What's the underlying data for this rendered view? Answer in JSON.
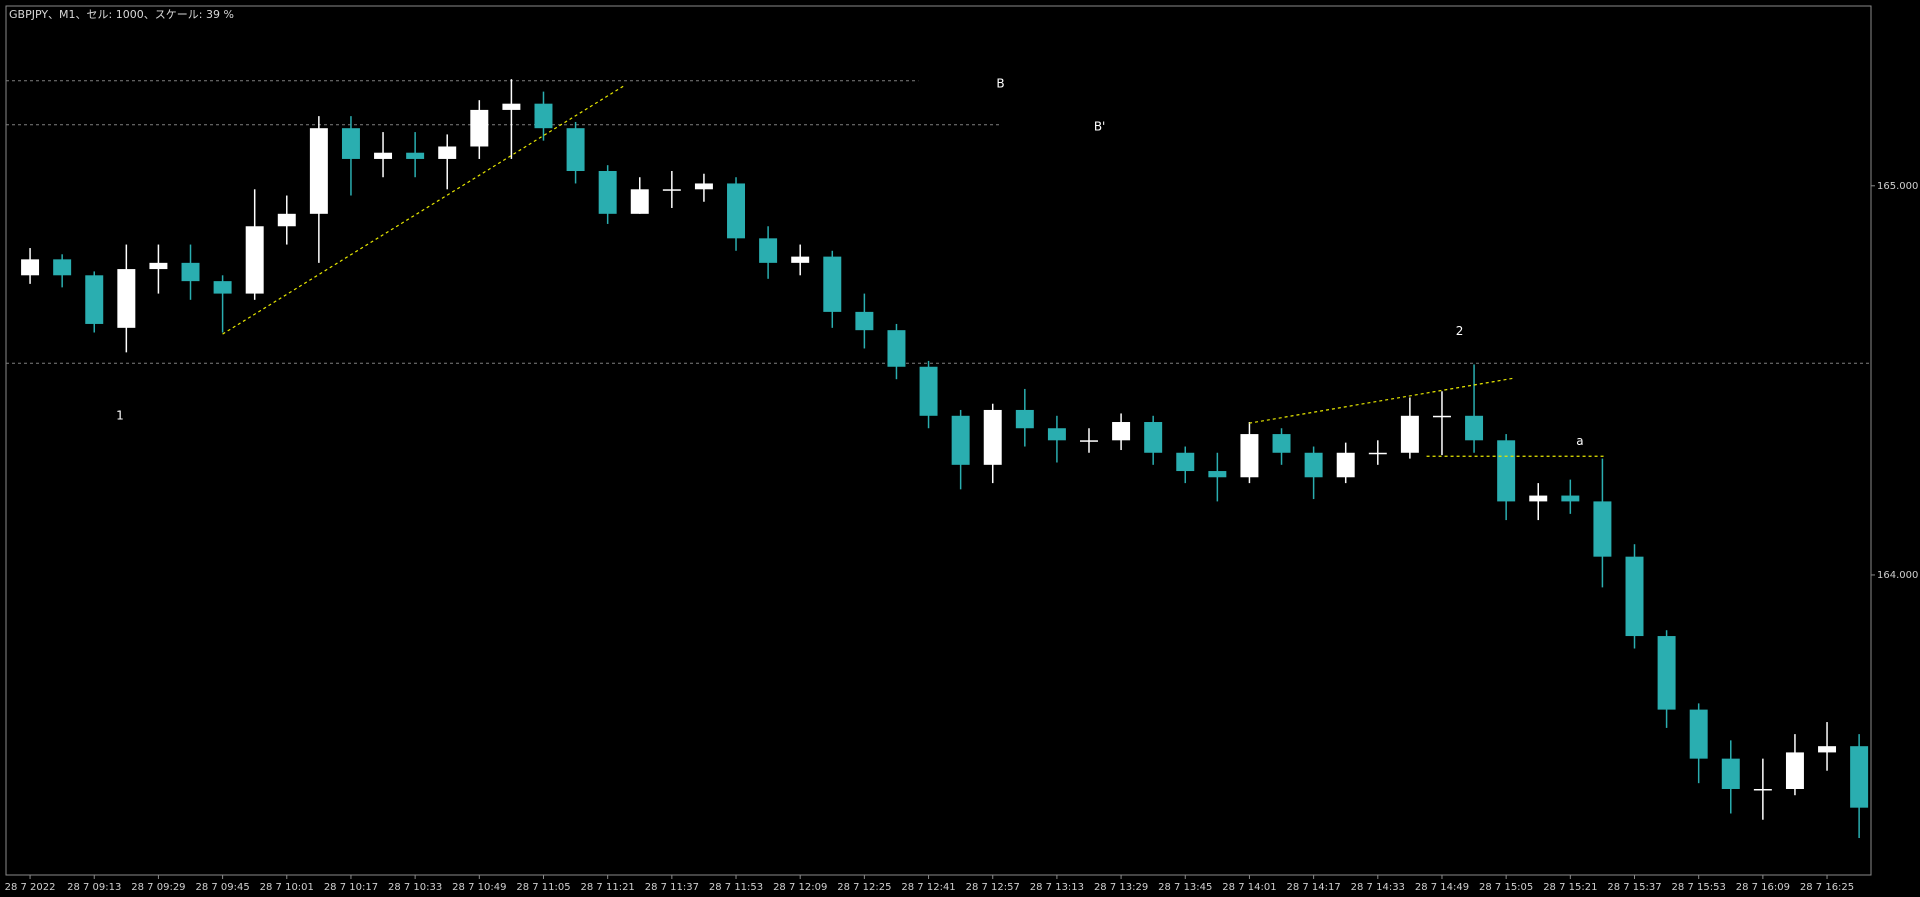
{
  "chart_data": {
    "type": "candlestick",
    "title": "GBPJPY、M1、セル: 1000、スケール: 39 %",
    "up_color": "#ffffff",
    "down_color": "#2aaeb0",
    "open": [
      164.77,
      164.811,
      164.77,
      164.635,
      164.786,
      164.802,
      164.755,
      164.723,
      164.896,
      164.928,
      165.148,
      165.069,
      165.085,
      165.069,
      165.101,
      165.195,
      165.211,
      165.148,
      165.038,
      164.928,
      164.991,
      164.991,
      165.006,
      164.865,
      164.802,
      164.818,
      164.676,
      164.629,
      164.535,
      164.409,
      164.283,
      164.424,
      164.377,
      164.346,
      164.346,
      164.393,
      164.314,
      164.267,
      164.251,
      164.362,
      164.314,
      164.251,
      164.314,
      164.314,
      164.409,
      164.409,
      164.346,
      164.189,
      164.204,
      164.189,
      164.047,
      163.843,
      163.654,
      163.528,
      163.45,
      163.45,
      163.544,
      163.56
    ],
    "high": [
      164.84,
      164.824,
      164.78,
      164.849,
      164.849,
      164.849,
      164.77,
      164.991,
      164.975,
      165.179,
      165.179,
      165.138,
      165.138,
      165.132,
      165.22,
      165.274,
      165.242,
      165.164,
      165.053,
      165.022,
      165.038,
      165.031,
      165.022,
      164.896,
      164.849,
      164.833,
      164.723,
      164.645,
      164.55,
      164.424,
      164.44,
      164.478,
      164.409,
      164.377,
      164.415,
      164.409,
      164.33,
      164.314,
      164.393,
      164.377,
      164.33,
      164.34,
      164.346,
      164.456,
      164.472,
      164.541,
      164.362,
      164.236,
      164.245,
      164.299,
      164.079,
      163.858,
      163.67,
      163.575,
      163.528,
      163.591,
      163.622,
      163.591
    ],
    "low": [
      164.748,
      164.739,
      164.623,
      164.572,
      164.723,
      164.707,
      164.623,
      164.707,
      164.849,
      164.802,
      164.975,
      165.022,
      165.022,
      164.991,
      165.069,
      165.069,
      165.116,
      165.006,
      164.902,
      164.928,
      164.943,
      164.959,
      164.833,
      164.761,
      164.77,
      164.635,
      164.582,
      164.503,
      164.377,
      164.22,
      164.236,
      164.33,
      164.289,
      164.314,
      164.321,
      164.283,
      164.236,
      164.189,
      164.236,
      164.283,
      164.195,
      164.236,
      164.283,
      164.299,
      164.308,
      164.314,
      164.141,
      164.141,
      164.157,
      163.968,
      163.811,
      163.607,
      163.465,
      163.387,
      163.371,
      163.434,
      163.497,
      163.324
    ],
    "close": [
      164.811,
      164.77,
      164.645,
      164.786,
      164.802,
      164.755,
      164.723,
      164.896,
      164.928,
      165.148,
      165.069,
      165.085,
      165.069,
      165.101,
      165.195,
      165.211,
      165.148,
      165.038,
      164.928,
      164.991,
      164.991,
      165.006,
      164.865,
      164.802,
      164.818,
      164.676,
      164.629,
      164.535,
      164.409,
      164.283,
      164.424,
      164.377,
      164.346,
      164.346,
      164.393,
      164.314,
      164.267,
      164.251,
      164.362,
      164.314,
      164.251,
      164.314,
      164.314,
      164.409,
      164.409,
      164.346,
      164.189,
      164.204,
      164.189,
      164.047,
      163.843,
      163.654,
      163.528,
      163.45,
      163.45,
      163.544,
      163.56,
      163.402
    ],
    "xlim": [
      -0.75,
      57.37
    ],
    "ylim": [
      163.229,
      165.462
    ],
    "yticks": [
      {
        "value": 165,
        "label": "165.000"
      },
      {
        "value": 164,
        "label": "164.000"
      }
    ],
    "xticks": [
      {
        "value": 0,
        "label": "28 7 2022"
      },
      {
        "value": 2,
        "label": "28 7 09:13"
      },
      {
        "value": 4,
        "label": "28 7 09:29"
      },
      {
        "value": 6,
        "label": "28 7 09:45"
      },
      {
        "value": 8,
        "label": "28 7 10:01"
      },
      {
        "value": 10,
        "label": "28 7 10:17"
      },
      {
        "value": 12,
        "label": "28 7 10:33"
      },
      {
        "value": 14,
        "label": "28 7 10:49"
      },
      {
        "value": 16,
        "label": "28 7 11:05"
      },
      {
        "value": 18,
        "label": "28 7 11:21"
      },
      {
        "value": 20,
        "label": "28 7 11:37"
      },
      {
        "value": 22,
        "label": "28 7 11:53"
      },
      {
        "value": 24,
        "label": "28 7 12:09"
      },
      {
        "value": 26,
        "label": "28 7 12:25"
      },
      {
        "value": 28,
        "label": "28 7 12:41"
      },
      {
        "value": 30,
        "label": "28 7 12:57"
      },
      {
        "value": 32,
        "label": "28 7 13:13"
      },
      {
        "value": 34,
        "label": "28 7 13:29"
      },
      {
        "value": 36,
        "label": "28 7 13:45"
      },
      {
        "value": 38,
        "label": "28 7 14:01"
      },
      {
        "value": 40,
        "label": "28 7 14:17"
      },
      {
        "value": 42,
        "label": "28 7 14:33"
      },
      {
        "value": 44,
        "label": "28 7 14:49"
      },
      {
        "value": 46,
        "label": "28 7 15:05"
      },
      {
        "value": 48,
        "label": "28 7 15:21"
      },
      {
        "value": 50,
        "label": "28 7 15:37"
      },
      {
        "value": 52,
        "label": "28 7 15:53"
      },
      {
        "value": 54,
        "label": "28 7 16:09"
      },
      {
        "value": 56,
        "label": "28 7 16:25"
      }
    ],
    "level_color": "#7f7f7f",
    "levels": [
      {
        "value": 165.27,
        "x_end": 27.68
      },
      {
        "value": 165.157,
        "x_end": 30.24
      },
      {
        "value": 164.544
      }
    ],
    "trend_color": "#e6e600",
    "trendlines": [
      {
        "points": [
          [
            6.0,
            164.619
          ],
          [
            18.53,
            165.258
          ]
        ]
      },
      {
        "points": [
          [
            37.99,
            164.39
          ],
          [
            46.27,
            164.506
          ]
        ]
      },
      {
        "points": [
          [
            43.52,
            164.305
          ],
          [
            49.06,
            164.305
          ]
        ]
      }
    ],
    "annotations": [
      {
        "text": "B",
        "x": 30.24,
        "y": 165.261
      },
      {
        "text": "B'",
        "x": 33.33,
        "y": 165.151
      },
      {
        "text": "1",
        "x": 2.8,
        "y": 164.409
      },
      {
        "text": "2",
        "x": 44.55,
        "y": 164.626
      },
      {
        "text": "a",
        "x": 48.3,
        "y": 164.343
      }
    ]
  }
}
